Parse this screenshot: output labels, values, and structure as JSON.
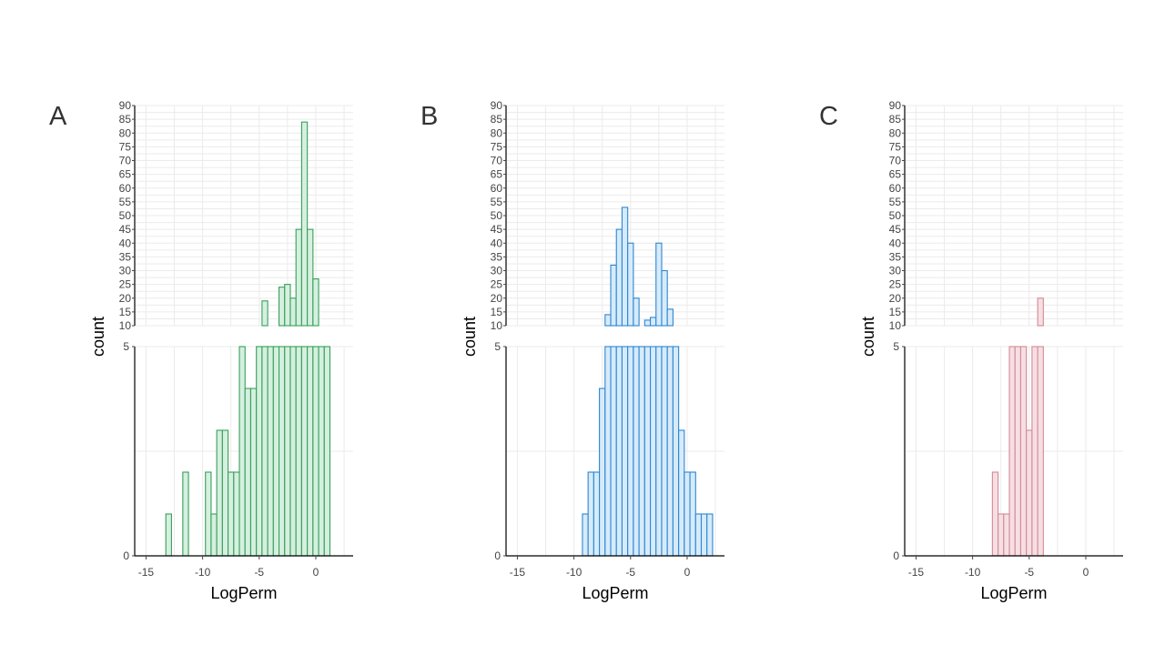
{
  "chart_data": [
    {
      "type": "bar",
      "panel_label": "A",
      "xlabel": "LogPerm",
      "ylabel": "count",
      "x_ticks": [
        -15,
        -10,
        -5,
        0
      ],
      "xlim": [
        -16,
        3.3
      ],
      "bin_width": 0.5,
      "broken_y_axis": true,
      "lower_ylim": [
        0,
        5
      ],
      "lower_y_ticks": [
        0,
        5
      ],
      "upper_ylim": [
        10,
        90
      ],
      "upper_y_ticks": [
        10,
        15,
        20,
        25,
        30,
        35,
        40,
        45,
        50,
        55,
        60,
        65,
        70,
        75,
        80,
        85,
        90
      ],
      "grid": true,
      "color": "#3a9e5c",
      "fill": "#d5f0df",
      "bins": [
        {
          "x": -13,
          "count": 1
        },
        {
          "x": -11.5,
          "count": 2
        },
        {
          "x": -9.5,
          "count": 2
        },
        {
          "x": -9,
          "count": 1
        },
        {
          "x": -8.5,
          "count": 3
        },
        {
          "x": -8,
          "count": 3
        },
        {
          "x": -7.5,
          "count": 2
        },
        {
          "x": -7,
          "count": 2
        },
        {
          "x": -6.5,
          "count": 7
        },
        {
          "x": -6,
          "count": 4
        },
        {
          "x": -5.5,
          "count": 4
        },
        {
          "x": -5,
          "count": 7
        },
        {
          "x": -4.5,
          "count": 19
        },
        {
          "x": -4,
          "count": 10
        },
        {
          "x": -3.5,
          "count": 8
        },
        {
          "x": -3,
          "count": 24
        },
        {
          "x": -2.5,
          "count": 25
        },
        {
          "x": -2,
          "count": 20
        },
        {
          "x": -1.5,
          "count": 45
        },
        {
          "x": -1,
          "count": 84
        },
        {
          "x": -0.5,
          "count": 45
        },
        {
          "x": 0,
          "count": 27
        },
        {
          "x": 0.5,
          "count": 9
        },
        {
          "x": 1,
          "count": 7
        }
      ]
    },
    {
      "type": "bar",
      "panel_label": "B",
      "xlabel": "LogPerm",
      "ylabel": "count",
      "x_ticks": [
        -15,
        -10,
        -5,
        0
      ],
      "xlim": [
        -16,
        3.3
      ],
      "bin_width": 0.5,
      "broken_y_axis": true,
      "lower_ylim": [
        0,
        5
      ],
      "lower_y_ticks": [
        0,
        5
      ],
      "upper_ylim": [
        10,
        90
      ],
      "upper_y_ticks": [
        10,
        15,
        20,
        25,
        30,
        35,
        40,
        45,
        50,
        55,
        60,
        65,
        70,
        75,
        80,
        85,
        90
      ],
      "grid": true,
      "color": "#2e86d1",
      "fill": "#d6ebfa",
      "bins": [
        {
          "x": -9,
          "count": 1
        },
        {
          "x": -8.5,
          "count": 2
        },
        {
          "x": -8,
          "count": 2
        },
        {
          "x": -7.5,
          "count": 4
        },
        {
          "x": -7,
          "count": 14
        },
        {
          "x": -6.5,
          "count": 32
        },
        {
          "x": -6,
          "count": 45
        },
        {
          "x": -5.5,
          "count": 53
        },
        {
          "x": -5,
          "count": 40
        },
        {
          "x": -4.5,
          "count": 20
        },
        {
          "x": -4,
          "count": 8
        },
        {
          "x": -3.5,
          "count": 12
        },
        {
          "x": -3,
          "count": 13
        },
        {
          "x": -2.5,
          "count": 40
        },
        {
          "x": -2,
          "count": 30
        },
        {
          "x": -1.5,
          "count": 16
        },
        {
          "x": -1,
          "count": 5
        },
        {
          "x": -0.5,
          "count": 3
        },
        {
          "x": 0,
          "count": 2
        },
        {
          "x": 0.5,
          "count": 2
        },
        {
          "x": 1,
          "count": 1
        },
        {
          "x": 1.5,
          "count": 1
        },
        {
          "x": 2,
          "count": 1
        }
      ]
    },
    {
      "type": "bar",
      "panel_label": "C",
      "xlabel": "LogPerm",
      "ylabel": "count",
      "x_ticks": [
        -15,
        -10,
        -5,
        0
      ],
      "xlim": [
        -16,
        3.3
      ],
      "bin_width": 0.5,
      "broken_y_axis": true,
      "lower_ylim": [
        0,
        5
      ],
      "lower_y_ticks": [
        0,
        5
      ],
      "upper_ylim": [
        10,
        90
      ],
      "upper_y_ticks": [
        10,
        15,
        20,
        25,
        30,
        35,
        40,
        45,
        50,
        55,
        60,
        65,
        70,
        75,
        80,
        85,
        90
      ],
      "grid": true,
      "color": "#d28a96",
      "fill": "#f6dfe3",
      "bins": [
        {
          "x": -8,
          "count": 2
        },
        {
          "x": -7.5,
          "count": 1
        },
        {
          "x": -7,
          "count": 1
        },
        {
          "x": -6.5,
          "count": 5
        },
        {
          "x": -6,
          "count": 6
        },
        {
          "x": -5.5,
          "count": 5
        },
        {
          "x": -5,
          "count": 3
        },
        {
          "x": -4.5,
          "count": 8
        },
        {
          "x": -4,
          "count": 20
        }
      ]
    }
  ]
}
